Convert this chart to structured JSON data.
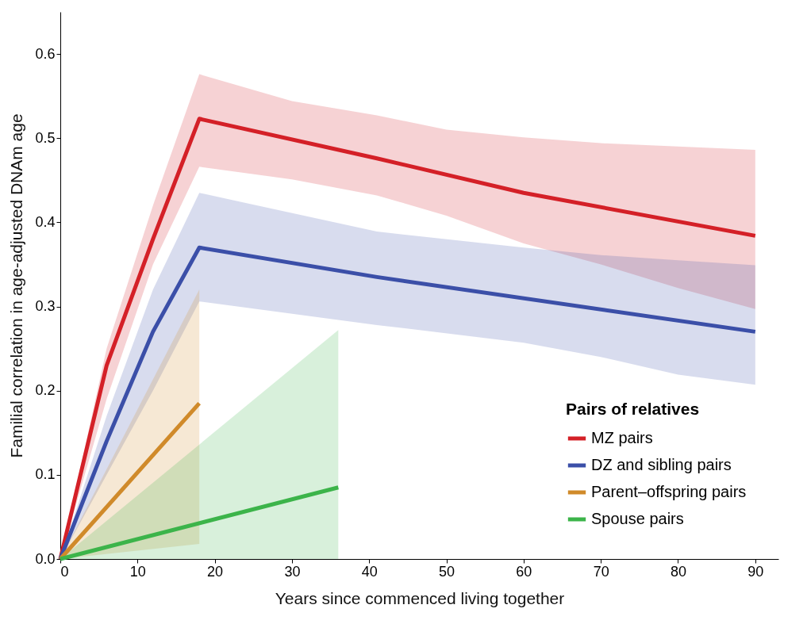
{
  "chart_data": {
    "type": "line",
    "xlabel": "Years since commenced living together",
    "ylabel": "Familial correlation in age-adjusted DNAm age",
    "legend_title": "Pairs of relatives",
    "legend": "bottom right",
    "grid": false,
    "line_style": "solid",
    "marker": "none",
    "xlim": [
      0,
      93
    ],
    "xticks": [
      0,
      10,
      20,
      30,
      40,
      50,
      60,
      70,
      80,
      90
    ],
    "ylim": [
      0,
      0.65
    ],
    "yticks": [
      {
        "value": 0,
        "label": "0.0"
      },
      {
        "value": 0.1,
        "label": "0.1"
      },
      {
        "value": 0.2,
        "label": "0.2"
      },
      {
        "value": 0.3,
        "label": "0.3"
      },
      {
        "value": 0.4,
        "label": "0.4"
      },
      {
        "value": 0.5,
        "label": "0.5"
      },
      {
        "value": 0.6,
        "label": "0.6"
      }
    ],
    "series": [
      {
        "name": "MZ pairs",
        "color": "#d42027",
        "x": [
          0,
          6,
          12,
          18,
          30,
          41,
          50,
          60,
          70,
          80,
          90
        ],
        "values": [
          0,
          0.23,
          0.38,
          0.523,
          null,
          0.476,
          null,
          0.435,
          null,
          null,
          0.384
        ],
        "lower": [
          0,
          0.19,
          0.35,
          0.466,
          0.451,
          0.432,
          0.408,
          0.375,
          0.35,
          0.322,
          0.297
        ],
        "upper": [
          0,
          0.25,
          0.42,
          0.576,
          0.544,
          0.527,
          0.51,
          0.501,
          0.494,
          0.49,
          0.486
        ]
      },
      {
        "name": "DZ and sibling pairs",
        "color": "#3b4fa8",
        "x": [
          0,
          6,
          12,
          18,
          41,
          60,
          70,
          80,
          90
        ],
        "values": [
          0,
          0.14,
          0.27,
          0.37,
          0.335,
          null,
          null,
          null,
          0.27
        ],
        "lower": [
          0,
          0.1,
          0.2,
          0.306,
          0.278,
          0.257,
          0.24,
          0.219,
          0.207
        ],
        "upper": [
          0,
          0.17,
          0.32,
          0.435,
          0.389,
          0.37,
          0.361,
          0.355,
          0.349
        ]
      },
      {
        "name": "Parent–offspring pairs",
        "color": "#d08a2a",
        "x": [
          0,
          18
        ],
        "values": [
          0,
          0.185
        ],
        "lower": [
          0,
          0.018
        ],
        "upper": [
          0,
          0.32
        ]
      },
      {
        "name": "Spouse pairs",
        "color": "#3cb44a",
        "x": [
          0,
          36
        ],
        "values": [
          0,
          0.085
        ],
        "lower": [
          0,
          0
        ],
        "upper": [
          0,
          0.272
        ]
      }
    ]
  }
}
